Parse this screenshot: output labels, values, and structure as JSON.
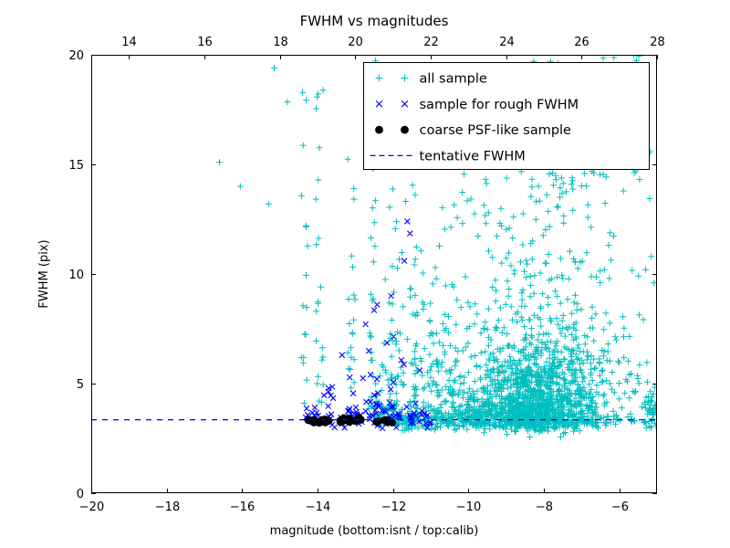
{
  "chart_data": {
    "type": "scatter",
    "title": "FWHM vs magnitudes",
    "xlabel": "magnitude (bottom:isnt / top:calib)",
    "ylabel": "FWHM (pix)",
    "x_bottom": {
      "range": [
        -20,
        -5
      ],
      "ticks": [
        -20,
        -18,
        -16,
        -14,
        -12,
        -10,
        -8,
        -6
      ]
    },
    "x_top": {
      "range": [
        13,
        28
      ],
      "ticks": [
        14,
        16,
        18,
        20,
        22,
        24,
        26,
        28
      ]
    },
    "y": {
      "range": [
        0,
        20
      ],
      "ticks": [
        0,
        5,
        10,
        15,
        20
      ]
    },
    "grid": false,
    "legend": {
      "position": "upper right"
    },
    "tentative_fwhm_y": 3.35,
    "series": [
      {
        "name": "all sample",
        "marker": "plus",
        "color": "#00bfbf",
        "clusters": [
          {
            "n": 1500,
            "x": {
              "dist": "normal",
              "mean": -8.3,
              "sd": 1.05,
              "min": -11.2,
              "max": -5.05
            },
            "y": {
              "dist": "exp",
              "base": 3.05,
              "scale": 1.35,
              "noise": 0.18,
              "min": 2.35,
              "max": 20
            }
          },
          {
            "n": 220,
            "x": {
              "dist": "uniform",
              "min": -12.4,
              "max": -9.6
            },
            "y": {
              "dist": "normal",
              "mean": 3.4,
              "sd": 0.25,
              "min": 2.8,
              "max": 4.2
            }
          },
          {
            "n": 150,
            "x": {
              "dist": "centers",
              "centers": [
                -14.35,
                -13.95,
                -13.1,
                -12.55,
                -12.0,
                -11.45,
                -10.95
              ],
              "spread": 0.1
            },
            "y": {
              "dist": "pow",
              "min": 3.4,
              "max": 19.8,
              "exp": 1.8
            }
          },
          {
            "n": 150,
            "x": {
              "dist": "uniform",
              "min": -12.6,
              "max": -10.2
            },
            "y": {
              "dist": "exp",
              "base": 3.8,
              "scale": 2.6,
              "min": 3.8,
              "max": 14
            }
          },
          {
            "n": 280,
            "x": {
              "dist": "normal",
              "mean": -7.9,
              "sd": 1.35,
              "min": -10.9,
              "max": -5.05
            },
            "y": {
              "dist": "pow",
              "min": 5,
              "max": 16,
              "exp": 1.5
            }
          },
          {
            "n": 80,
            "x": {
              "dist": "normal",
              "mean": -7.6,
              "sd": 1.5,
              "min": -10.5,
              "max": -5.05
            },
            "y": {
              "dist": "uniform",
              "min": 14,
              "max": 20
            }
          },
          {
            "n": 45,
            "x": {
              "dist": "uniform",
              "min": -5.35,
              "max": -5.02
            },
            "y": {
              "dist": "normal",
              "mean": 3.7,
              "sd": 0.55,
              "min": 2.9,
              "max": 5.2
            }
          },
          {
            "points": [
              [
                -16.6,
                15.1
              ],
              [
                -15.15,
                19.4
              ],
              [
                -14.8,
                17.85
              ],
              [
                -15.3,
                13.2
              ],
              [
                -16.05,
                14.0
              ],
              [
                -5.15,
                10.8
              ],
              [
                -5.08,
                9.6
              ],
              [
                -5.3,
                10.2
              ]
            ]
          }
        ]
      },
      {
        "name": "sample for rough FWHM",
        "marker": "x",
        "color": "#0000ff",
        "clusters": [
          {
            "n": 85,
            "x": {
              "dist": "uniform",
              "min": -14.35,
              "max": -10.95
            },
            "y": {
              "dist": "normal",
              "mean": 3.5,
              "sd": 0.35,
              "min": 2.95,
              "max": 4.7
            }
          },
          {
            "n": 20,
            "x": {
              "dist": "uniform",
              "min": -13.9,
              "max": -11.2
            },
            "y": {
              "dist": "exp",
              "base": 4.4,
              "scale": 1.8,
              "min": 4.4,
              "max": 9.5
            }
          },
          {
            "points": [
              [
                -11.62,
                12.4
              ],
              [
                -11.55,
                11.85
              ],
              [
                -11.7,
                10.6
              ],
              [
                -12.5,
                8.35
              ],
              [
                -12.42,
                8.6
              ],
              [
                -13.35,
                6.3
              ],
              [
                -12.05,
                9.0
              ]
            ]
          }
        ]
      },
      {
        "name": "coarse PSF-like sample",
        "marker": "dot",
        "color": "#000000",
        "clusters": [
          {
            "n": 42,
            "x": {
              "dist": "centers",
              "centers": [
                -13.95,
                -13.15,
                -12.15
              ],
              "spread": 0.3
            },
            "y": {
              "dist": "normal",
              "mean": 3.3,
              "sd": 0.07,
              "min": 3.12,
              "max": 3.48
            }
          }
        ]
      },
      {
        "name": "tentative FWHM",
        "marker": "dashed-line",
        "color": "#0000ff",
        "y": 3.35
      }
    ]
  }
}
